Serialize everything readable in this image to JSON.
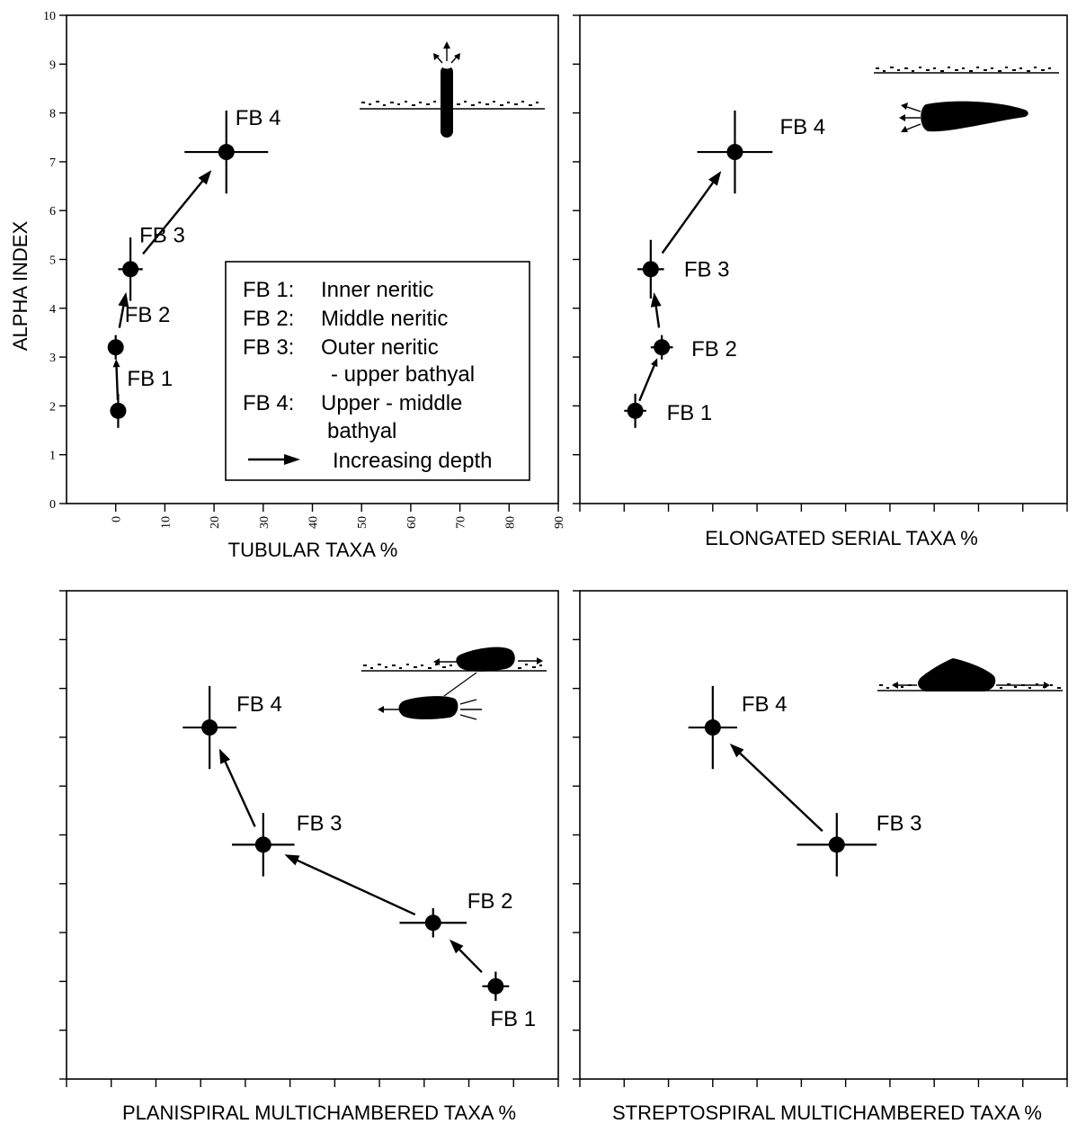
{
  "y_axis_title": "ALPHA INDEX",
  "legend": {
    "entries": [
      {
        "key": "FB 1:",
        "text": [
          "Inner neritic"
        ]
      },
      {
        "key": "FB 2:",
        "text": [
          "Middle neritic"
        ]
      },
      {
        "key": "FB 3:",
        "text": [
          "Outer neritic",
          "- upper bathyal"
        ]
      },
      {
        "key": "FB 4:",
        "text": [
          "Upper - middle",
          "bathyal"
        ]
      }
    ],
    "arrow_text": "Increasing depth"
  },
  "chart_data": [
    {
      "type": "scatter",
      "xlabel": "TUBULAR TAXA  %",
      "ylabel": "ALPHA INDEX",
      "xlim": [
        -10,
        90
      ],
      "ylim": [
        0,
        10
      ],
      "x_ticks": [
        0,
        10,
        20,
        30,
        40,
        50,
        60,
        70,
        80,
        90
      ],
      "x_tick_labels": [
        "0",
        "10",
        "20",
        "30",
        "40",
        "50",
        "60",
        "70",
        "80",
        "90"
      ],
      "y_ticks": [
        0,
        1,
        2,
        3,
        4,
        5,
        6,
        7,
        8,
        9,
        10
      ],
      "y_tick_labels": [
        "0",
        "1",
        "2",
        "3",
        "4",
        "5",
        "6",
        "7",
        "8",
        "9",
        "10"
      ],
      "points": [
        {
          "label": "FB 1",
          "x": 0.5,
          "y": 1.9,
          "xerr": 1.5,
          "yerr": 0.35
        },
        {
          "label": "FB 2",
          "x": 0,
          "y": 3.2,
          "xerr": 1.5,
          "yerr": 0.25
        },
        {
          "label": "FB 3",
          "x": 3,
          "y": 4.8,
          "xerr": 2.5,
          "yerr": 0.65
        },
        {
          "label": "FB 4",
          "x": 22.5,
          "y": 7.2,
          "xerr": 8.5,
          "yerr": 0.85
        }
      ],
      "arrows": [
        [
          0,
          1
        ],
        [
          1,
          2
        ],
        [
          2,
          3
        ]
      ]
    },
    {
      "type": "scatter",
      "xlabel": "ELONGATED SERIAL TAXA  %",
      "xlim": [
        0,
        11
      ],
      "ylim": [
        0,
        10
      ],
      "x_ticks": [
        0,
        1,
        2,
        3,
        4,
        5,
        6,
        7,
        8,
        9,
        10,
        11
      ],
      "y_ticks": [
        0,
        1,
        2,
        3,
        4,
        5,
        6,
        7,
        8,
        9,
        10
      ],
      "points": [
        {
          "label": "FB 1",
          "x": 1.25,
          "y": 1.9,
          "xerr": 0.25,
          "yerr": 0.35
        },
        {
          "label": "FB 2",
          "x": 1.85,
          "y": 3.2,
          "xerr": 0.25,
          "yerr": 0.25
        },
        {
          "label": "FB 3",
          "x": 1.6,
          "y": 4.8,
          "xerr": 0.3,
          "yerr": 0.6
        },
        {
          "label": "FB 4",
          "x": 3.5,
          "y": 7.2,
          "xerr": 0.85,
          "yerr": 0.85
        }
      ],
      "arrows": [
        [
          0,
          1
        ],
        [
          1,
          2
        ],
        [
          2,
          3
        ]
      ]
    },
    {
      "type": "scatter",
      "xlabel": "PLANISPIRAL MULTICHAMBERED TAXA  %",
      "xlim": [
        0,
        11
      ],
      "ylim": [
        0,
        10
      ],
      "x_ticks": [
        0,
        1,
        2,
        3,
        4,
        5,
        6,
        7,
        8,
        9,
        10,
        11
      ],
      "y_ticks": [
        0,
        1,
        2,
        3,
        4,
        5,
        6,
        7,
        8,
        9,
        10
      ],
      "points": [
        {
          "label": "FB 1",
          "x": 9.6,
          "y": 1.9,
          "xerr": 0.3,
          "yerr": 0.3
        },
        {
          "label": "FB 2",
          "x": 8.2,
          "y": 3.2,
          "xerr": 0.75,
          "yerr": 0.3
        },
        {
          "label": "FB 3",
          "x": 4.4,
          "y": 4.8,
          "xerr": 0.7,
          "yerr": 0.65
        },
        {
          "label": "FB 4",
          "x": 3.2,
          "y": 7.2,
          "xerr": 0.6,
          "yerr": 0.85
        }
      ],
      "arrows": [
        [
          0,
          1
        ],
        [
          1,
          2
        ],
        [
          2,
          3
        ]
      ]
    },
    {
      "type": "scatter",
      "xlabel": "STREPTOSPIRAL MULTICHAMBERED TAXA  %",
      "xlim": [
        0,
        11
      ],
      "ylim": [
        0,
        10
      ],
      "x_ticks": [
        0,
        1,
        2,
        3,
        4,
        5,
        6,
        7,
        8,
        9,
        10,
        11
      ],
      "y_ticks": [
        0,
        1,
        2,
        3,
        4,
        5,
        6,
        7,
        8,
        9,
        10
      ],
      "points": [
        {
          "label": "FB 3",
          "x": 5.8,
          "y": 4.8,
          "xerr": 0.9,
          "yerr": 0.65
        },
        {
          "label": "FB 4",
          "x": 3.0,
          "y": 7.2,
          "xerr": 0.55,
          "yerr": 0.85
        }
      ],
      "arrows": [
        [
          0,
          1
        ]
      ]
    }
  ]
}
